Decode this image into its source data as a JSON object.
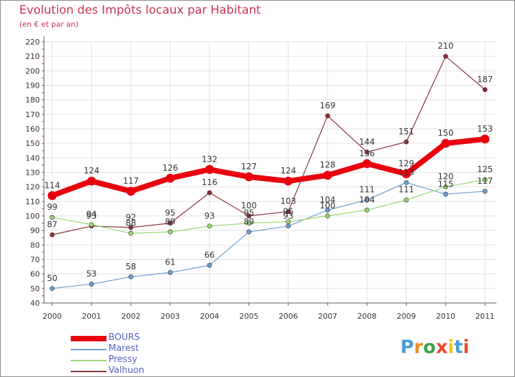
{
  "chart_data": {
    "type": "line",
    "title": "Evolution des Impôts locaux par Habitant",
    "subtitle": "(en € et par an)",
    "x": [
      "2000",
      "2001",
      "2002",
      "2003",
      "2004",
      "2005",
      "2006",
      "2007",
      "2008",
      "2009",
      "2010",
      "2011"
    ],
    "ylim": [
      40,
      220
    ],
    "yticks": [
      40,
      50,
      60,
      70,
      80,
      90,
      100,
      110,
      120,
      130,
      140,
      150,
      160,
      170,
      180,
      190,
      200,
      210,
      220
    ],
    "series": [
      {
        "name": "Valhuon",
        "color": "#8b2e36",
        "values": [
          87,
          93,
          92,
          95,
          116,
          100,
          103,
          169,
          144,
          151,
          210,
          187
        ]
      },
      {
        "name": "Marest",
        "color": "#6b9ed0",
        "values": [
          50,
          53,
          58,
          61,
          66,
          89,
          93,
          104,
          111,
          123,
          115,
          117
        ]
      },
      {
        "name": "Pressy",
        "color": "#9ad56e",
        "values": [
          99,
          94,
          88,
          89,
          93,
          95,
          96,
          100,
          104,
          111,
          120,
          125
        ]
      },
      {
        "name": "BOURS",
        "color": "#e8000e",
        "values": [
          114,
          124,
          117,
          126,
          132,
          127,
          124,
          128,
          136,
          129,
          150,
          153
        ]
      }
    ],
    "data_labels": {
      "Valhuon": [
        "87",
        "93",
        "92",
        "95",
        "116",
        "100",
        "103",
        "169",
        "144",
        "151",
        "210",
        "187"
      ],
      "Marest": [
        "50",
        "53",
        "58",
        "61",
        "66",
        "89",
        "93",
        "104",
        "111",
        "123",
        "115",
        "117"
      ],
      "Pressy": [
        "99",
        "94",
        "88",
        "89",
        "93",
        "95",
        "96",
        "100",
        "104",
        "111",
        "120",
        "125"
      ],
      "BOURS": [
        "114",
        "124",
        "117",
        "126",
        "132",
        "127",
        "124",
        "128",
        "136",
        "129",
        "150",
        "153"
      ]
    },
    "legend_order": [
      "BOURS",
      "Marest",
      "Pressy",
      "Valhuon"
    ]
  },
  "logo": {
    "text": "Proxiti",
    "colors": [
      "#4a9bd6",
      "#f08a2a",
      "#3aa34a",
      "#e84a2e",
      "#f5c518",
      "#4a9bd6",
      "#e84a2e"
    ]
  }
}
